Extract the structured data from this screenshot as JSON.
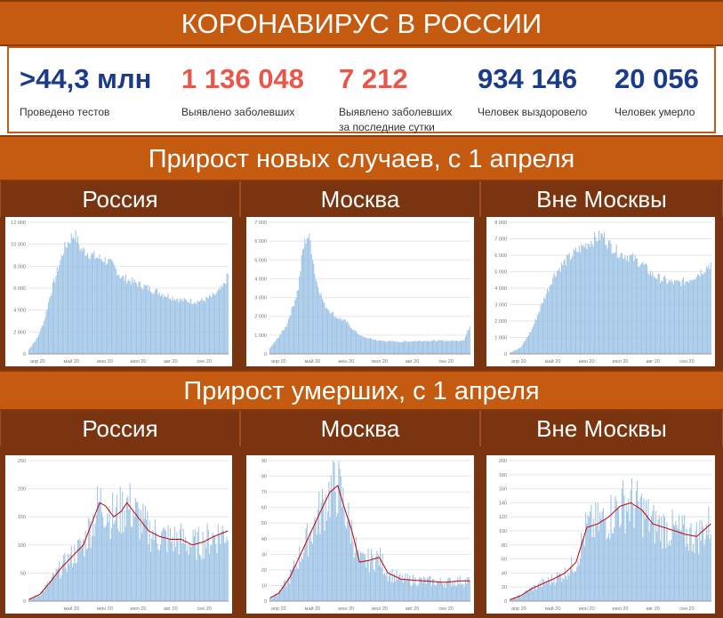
{
  "title": "КОРОНАВИРУС В РОССИИ",
  "stats": [
    {
      "value": ">44,3 млн",
      "label": "Проведено тестов",
      "color": "#1a3a8a"
    },
    {
      "value": "1 136 048",
      "label": "Выявлено заболевших",
      "color": "#e8584a"
    },
    {
      "value": "7 212",
      "label": "Выявлено заболевших за последние сутки",
      "color": "#e8584a"
    },
    {
      "value": "934 146",
      "label": "Человек выздоровело",
      "color": "#1a3a8a"
    },
    {
      "value": "20 056",
      "label": "Человек умерло",
      "color": "#1a3a8a"
    }
  ],
  "section_cases": "Прирост новых случаев, с 1 апреля",
  "section_deaths": "Прирост умерших, с 1 апреля",
  "region_labels": [
    "Россия",
    "Москва",
    "Вне Москвы"
  ],
  "colors": {
    "band": "#c55a11",
    "header": "#7a3410",
    "bar": "#9dc3e6",
    "line": "#c00000"
  },
  "chart_data": [
    {
      "type": "bar",
      "title": "",
      "region": "Россия",
      "metric": "cases",
      "yticks": [
        "0",
        "2 000",
        "4 000",
        "6 000",
        "8 000",
        "10 000",
        "12 000"
      ],
      "ylim": [
        0,
        12000
      ],
      "xticks": [
        "апр 20",
        "май 20",
        "июн 20",
        "июл 20",
        "авг 20",
        "сен 20"
      ],
      "x_start": "2020-04-01",
      "x_end": "2020-09-30",
      "anchors": [
        [
          0,
          400
        ],
        [
          8,
          1500
        ],
        [
          14,
          3000
        ],
        [
          20,
          5500
        ],
        [
          26,
          7500
        ],
        [
          32,
          9500
        ],
        [
          38,
          10500
        ],
        [
          42,
          11000
        ],
        [
          48,
          9500
        ],
        [
          55,
          9200
        ],
        [
          62,
          8800
        ],
        [
          70,
          8600
        ],
        [
          78,
          8000
        ],
        [
          85,
          7000
        ],
        [
          95,
          6600
        ],
        [
          110,
          6000
        ],
        [
          125,
          5400
        ],
        [
          140,
          4900
        ],
        [
          150,
          4800
        ],
        [
          160,
          4850
        ],
        [
          170,
          5300
        ],
        [
          178,
          6000
        ],
        [
          183,
          7200
        ]
      ]
    },
    {
      "type": "bar",
      "title": "",
      "region": "Москва",
      "metric": "cases",
      "yticks": [
        "0",
        "1 000",
        "2 000",
        "3 000",
        "4 000",
        "5 000",
        "6 000",
        "7 000"
      ],
      "ylim": [
        0,
        7000
      ],
      "xticks": [
        "апр 20",
        "май 20",
        "июн 20",
        "июл 20",
        "авг 20",
        "сен 20"
      ],
      "x_start": "2020-04-01",
      "x_end": "2020-09-30",
      "anchors": [
        [
          0,
          300
        ],
        [
          8,
          900
        ],
        [
          15,
          1500
        ],
        [
          22,
          2700
        ],
        [
          26,
          3500
        ],
        [
          30,
          5500
        ],
        [
          34,
          6300
        ],
        [
          37,
          6000
        ],
        [
          42,
          4000
        ],
        [
          50,
          2600
        ],
        [
          60,
          2000
        ],
        [
          70,
          1700
        ],
        [
          78,
          1200
        ],
        [
          85,
          900
        ],
        [
          100,
          700
        ],
        [
          120,
          650
        ],
        [
          140,
          700
        ],
        [
          155,
          700
        ],
        [
          170,
          700
        ],
        [
          178,
          750
        ],
        [
          183,
          1500
        ]
      ]
    },
    {
      "type": "bar",
      "title": "",
      "region": "Вне Москвы",
      "metric": "cases",
      "yticks": [
        "0",
        "1 000",
        "2 000",
        "3 000",
        "4 000",
        "5 000",
        "6 000",
        "7 000",
        "8 000"
      ],
      "ylim": [
        0,
        8000
      ],
      "xticks": [
        "апр 20",
        "май 20",
        "июн 20",
        "июл 20",
        "авг 20",
        "сен 20"
      ],
      "x_start": "2020-04-01",
      "x_end": "2020-09-30",
      "anchors": [
        [
          0,
          80
        ],
        [
          10,
          400
        ],
        [
          20,
          1500
        ],
        [
          30,
          3200
        ],
        [
          40,
          4800
        ],
        [
          50,
          5600
        ],
        [
          60,
          6200
        ],
        [
          70,
          6700
        ],
        [
          80,
          7100
        ],
        [
          85,
          7200
        ],
        [
          90,
          6700
        ],
        [
          100,
          6100
        ],
        [
          110,
          5900
        ],
        [
          120,
          5500
        ],
        [
          130,
          4800
        ],
        [
          140,
          4500
        ],
        [
          150,
          4300
        ],
        [
          160,
          4400
        ],
        [
          170,
          4800
        ],
        [
          178,
          5200
        ],
        [
          183,
          5500
        ]
      ]
    },
    {
      "type": "bar",
      "title": "",
      "region": "Россия",
      "metric": "deaths",
      "yticks": [
        "0",
        "50",
        "100",
        "150",
        "200",
        "250"
      ],
      "ylim": [
        0,
        250
      ],
      "xticks": [
        "май 20",
        "июн 20",
        "июл 20",
        "авг 20",
        "сен 20"
      ],
      "x_start": "2020-04-01",
      "x_end": "2020-09-30",
      "moving_average": true,
      "anchors": [
        [
          0,
          3
        ],
        [
          10,
          12
        ],
        [
          20,
          35
        ],
        [
          30,
          60
        ],
        [
          40,
          80
        ],
        [
          50,
          100
        ],
        [
          60,
          150
        ],
        [
          65,
          175
        ],
        [
          70,
          170
        ],
        [
          78,
          150
        ],
        [
          85,
          160
        ],
        [
          90,
          175
        ],
        [
          100,
          150
        ],
        [
          110,
          125
        ],
        [
          120,
          115
        ],
        [
          130,
          110
        ],
        [
          140,
          110
        ],
        [
          150,
          100
        ],
        [
          160,
          105
        ],
        [
          170,
          115
        ],
        [
          183,
          125
        ]
      ]
    },
    {
      "type": "bar",
      "title": "",
      "region": "Москва",
      "metric": "deaths",
      "yticks": [
        "0",
        "10",
        "20",
        "30",
        "40",
        "50",
        "60",
        "70",
        "80",
        "90"
      ],
      "ylim": [
        0,
        90
      ],
      "xticks": [
        "апр 20",
        "май 20",
        "июн 20",
        "июл 20",
        "авг 20",
        "сен 20"
      ],
      "x_start": "2020-04-01",
      "x_end": "2020-09-30",
      "moving_average": true,
      "anchors": [
        [
          0,
          2
        ],
        [
          8,
          5
        ],
        [
          18,
          15
        ],
        [
          28,
          30
        ],
        [
          38,
          45
        ],
        [
          48,
          60
        ],
        [
          55,
          70
        ],
        [
          62,
          74
        ],
        [
          68,
          60
        ],
        [
          75,
          45
        ],
        [
          82,
          25
        ],
        [
          90,
          26
        ],
        [
          100,
          28
        ],
        [
          108,
          18
        ],
        [
          120,
          14
        ],
        [
          140,
          13
        ],
        [
          160,
          12
        ],
        [
          175,
          13
        ],
        [
          183,
          13
        ]
      ]
    },
    {
      "type": "bar",
      "title": "",
      "region": "Вне Москвы",
      "metric": "deaths",
      "yticks": [
        "0",
        "20",
        "40",
        "60",
        "80",
        "100",
        "120",
        "140",
        "160",
        "180",
        "200"
      ],
      "ylim": [
        0,
        200
      ],
      "xticks": [
        "апр 20",
        "май 20",
        "июн 20",
        "июл 20",
        "авг 20",
        "сен 20"
      ],
      "x_start": "2020-04-01",
      "x_end": "2020-09-30",
      "moving_average": true,
      "anchors": [
        [
          0,
          2
        ],
        [
          10,
          8
        ],
        [
          20,
          18
        ],
        [
          30,
          25
        ],
        [
          40,
          32
        ],
        [
          50,
          40
        ],
        [
          60,
          55
        ],
        [
          65,
          80
        ],
        [
          70,
          105
        ],
        [
          80,
          110
        ],
        [
          90,
          120
        ],
        [
          100,
          135
        ],
        [
          110,
          140
        ],
        [
          120,
          130
        ],
        [
          130,
          110
        ],
        [
          140,
          105
        ],
        [
          150,
          100
        ],
        [
          160,
          95
        ],
        [
          170,
          92
        ],
        [
          183,
          110
        ]
      ]
    }
  ]
}
